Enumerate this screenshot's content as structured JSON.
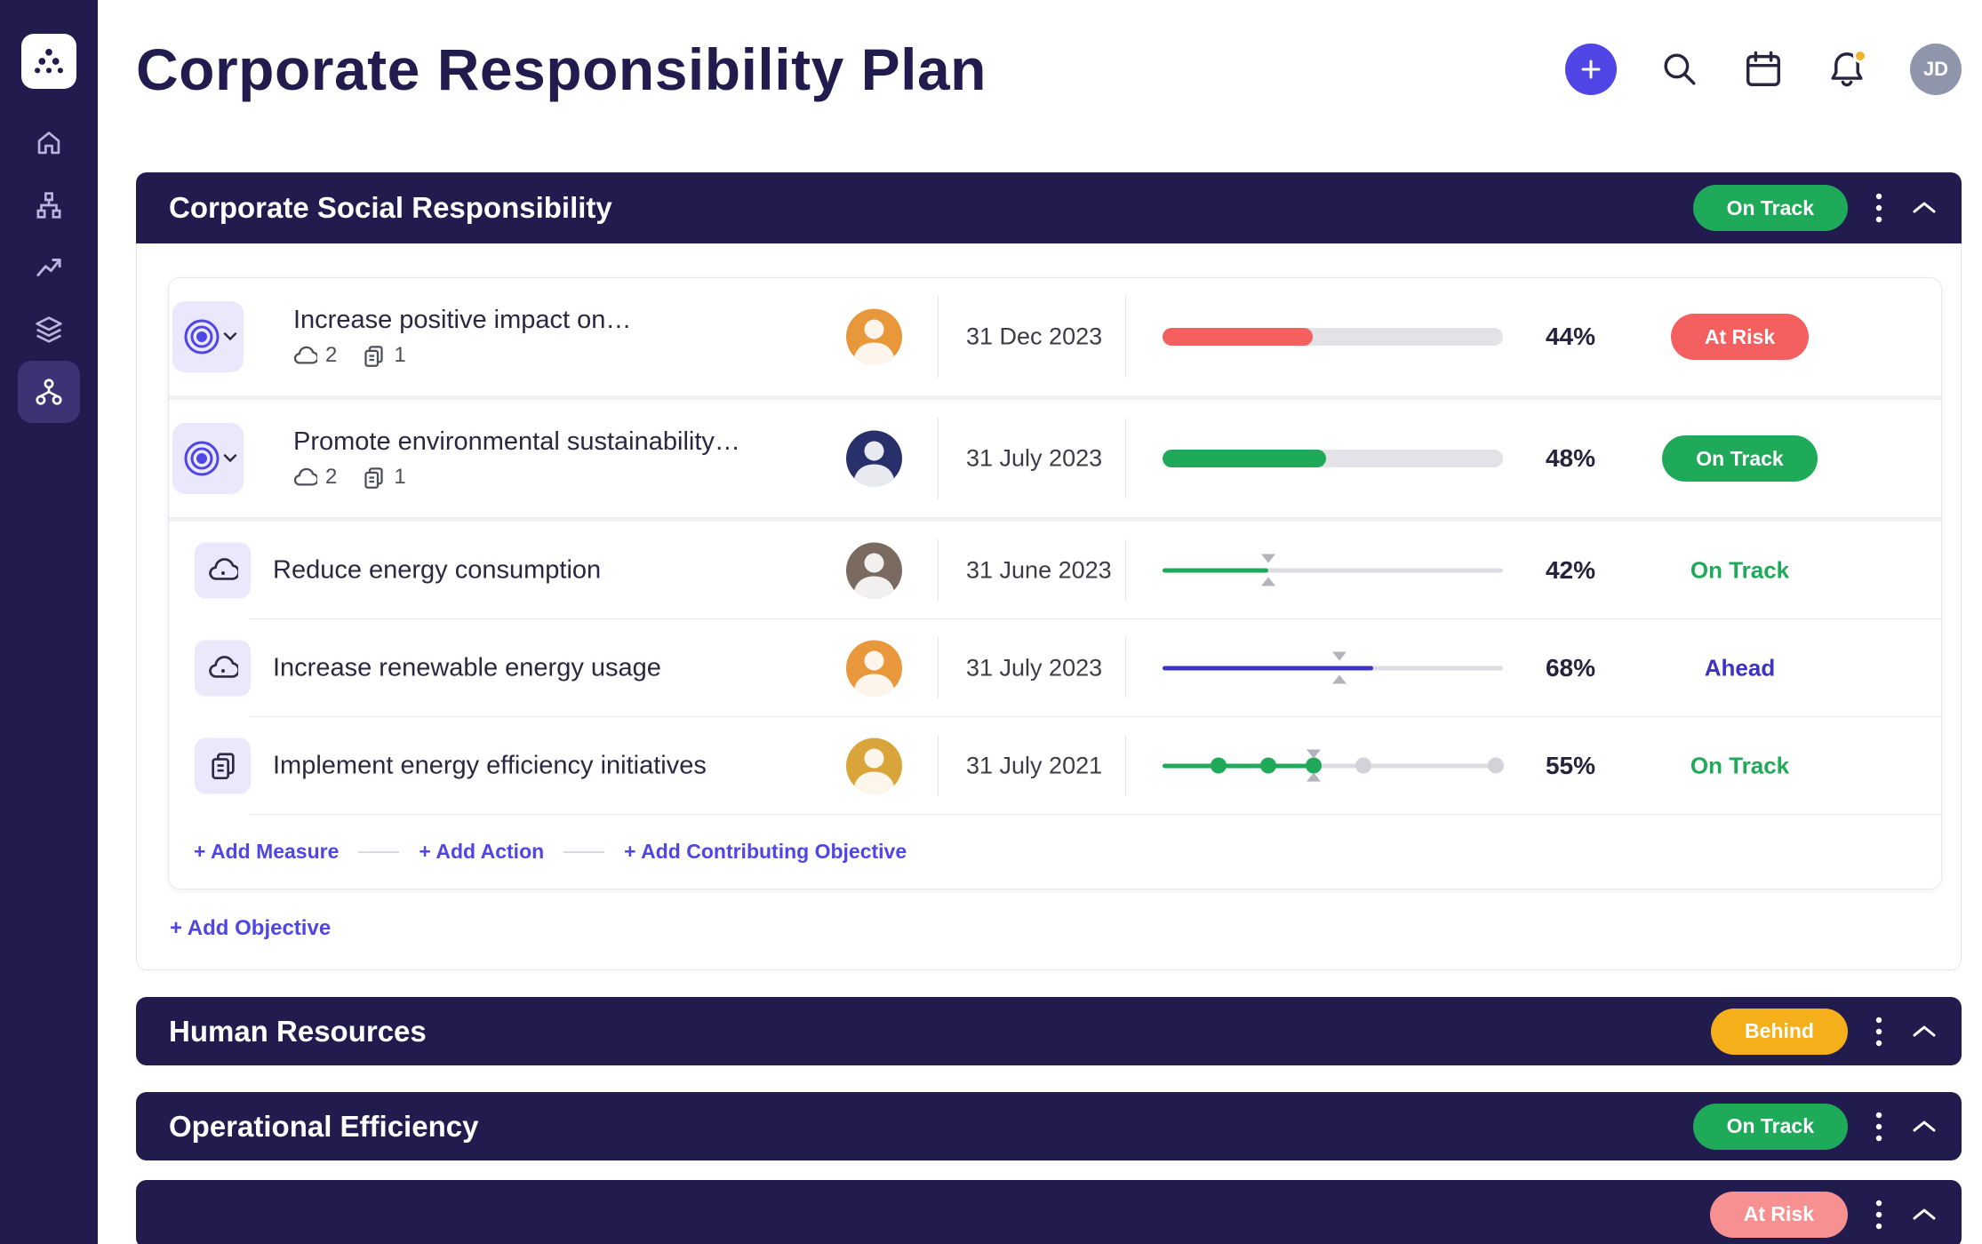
{
  "colors": {
    "navy": "#221b4e",
    "indigo": "#4f46e5",
    "green": "#1faa59",
    "red": "#f45f5f",
    "yellow": "#f5af1b",
    "pink": "#f79090",
    "ahead": "#3d33c2"
  },
  "sidebar": {
    "items": [
      {
        "icon": "home-icon"
      },
      {
        "icon": "hierarchy-icon"
      },
      {
        "icon": "trend-icon"
      },
      {
        "icon": "layers-icon"
      },
      {
        "icon": "network-icon",
        "selected": true
      }
    ]
  },
  "page": {
    "title": "Corporate Responsibility Plan"
  },
  "topbar": {
    "icons": [
      "plus-icon",
      "search-icon",
      "calendar-icon",
      "bell-icon"
    ],
    "avatar_initials": "JD"
  },
  "plan_sections": [
    {
      "title": "Corporate Social Responsibility",
      "status": {
        "label": "On Track",
        "bg": "#1faa59"
      },
      "rows": [
        {
          "type": "objective",
          "icon": "target-icon",
          "title": "Increase positive impact on…",
          "measure_count": "2",
          "action_count": "1",
          "avatar_bg": "#e8973a",
          "due_date": "31 Dec 2023",
          "progress": {
            "style": "bar",
            "value": 44,
            "color": "#f45f5f"
          },
          "percent": "44%",
          "status": {
            "kind": "pill",
            "label": "At Risk",
            "bg": "#f45f5f"
          }
        },
        {
          "type": "objective",
          "icon": "target-icon",
          "title": "Promote environmental sustainability…",
          "measure_count": "2",
          "action_count": "1",
          "avatar_bg": "#27306b",
          "due_date": "31 July 2023",
          "progress": {
            "style": "bar",
            "value": 48,
            "color": "#1faa59"
          },
          "percent": "48%",
          "status": {
            "kind": "pill",
            "label": "On Track",
            "bg": "#1faa59"
          }
        },
        {
          "type": "measure",
          "icon": "cloud-icon",
          "title": "Reduce energy consumption",
          "avatar_bg": "#7a6a5f",
          "due_date": "31 June 2023",
          "progress": {
            "style": "line",
            "fill": 31,
            "marker": 31,
            "color": "#1faa59"
          },
          "percent": "42%",
          "status": {
            "kind": "text",
            "label": "On Track",
            "color": "#1faa59"
          }
        },
        {
          "type": "measure",
          "icon": "cloud-icon",
          "title": "Increase renewable energy usage",
          "avatar_bg": "#e8973a",
          "due_date": "31 July 2023",
          "progress": {
            "style": "line",
            "fill": 62,
            "marker": 52,
            "color": "#3d33c2"
          },
          "percent": "68%",
          "status": {
            "kind": "text",
            "label": "Ahead",
            "color": "#3d33c2"
          }
        },
        {
          "type": "action",
          "icon": "document-icon",
          "title": "Implement energy efficiency initiatives",
          "avatar_bg": "#d9a43a",
          "due_date": "31 July 2021",
          "progress": {
            "style": "milestones",
            "dots": [
              16.5,
              31,
              44.5,
              59,
              98
            ],
            "completed": 3,
            "marker": 44.5,
            "color": "#1faa59"
          },
          "percent": "55%",
          "status": {
            "kind": "text",
            "label": "On Track",
            "color": "#1faa59"
          }
        }
      ],
      "add_links": [
        {
          "label": "+ Add Measure"
        },
        {
          "label": "+ Add Action"
        },
        {
          "label": "+ Add Contributing Objective"
        }
      ],
      "add_objective": "+ Add Objective"
    },
    {
      "title": "Human Resources",
      "status": {
        "label": "Behind",
        "bg": "#f5af1b"
      }
    },
    {
      "title": "Operational Efficiency",
      "status": {
        "label": "On Track",
        "bg": "#1faa59"
      }
    },
    {
      "title": "",
      "status": {
        "label": "At Risk",
        "bg": "#f79090"
      }
    }
  ]
}
